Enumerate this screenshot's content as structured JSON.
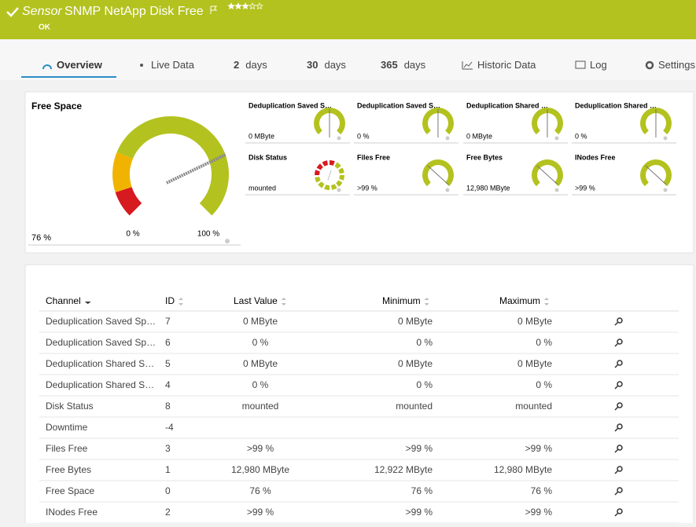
{
  "header": {
    "prefix": "Sensor",
    "title": "SNMP NetApp Disk Free",
    "status": "OK"
  },
  "tabs": [
    {
      "label": "Overview"
    },
    {
      "label": "Live Data"
    },
    {
      "count": "2",
      "label": "days"
    },
    {
      "count": "30",
      "label": "days"
    },
    {
      "count": "365",
      "label": "days"
    },
    {
      "label": "Historic Data"
    },
    {
      "label": "Log"
    },
    {
      "label": "Settings"
    }
  ],
  "gauge": {
    "title": "Free Space",
    "value": "76 %",
    "min_label": "0 %",
    "max_label": "100 %"
  },
  "mini_gauges": [
    {
      "title": "Deduplication Saved S…",
      "value": "0 MByte"
    },
    {
      "title": "Deduplication Saved S…",
      "value": "0 %"
    },
    {
      "title": "Deduplication Shared …",
      "value": "0 MByte"
    },
    {
      "title": "Deduplication Shared …",
      "value": "0 %"
    },
    {
      "title": "Disk Status",
      "value": "mounted"
    },
    {
      "title": "Files Free",
      "value": ">99 %"
    },
    {
      "title": "Free Bytes",
      "value": "12,980 MByte"
    },
    {
      "title": "INodes Free",
      "value": ">99 %"
    }
  ],
  "table": {
    "columns": [
      "Channel",
      "ID",
      "Last Value",
      "Minimum",
      "Maximum"
    ],
    "rows": [
      [
        "Deduplication Saved Sp…",
        7,
        "0 MByte",
        "0 MByte",
        "0 MByte"
      ],
      [
        "Deduplication Saved Sp…",
        6,
        "0 %",
        "0 %",
        "0 %"
      ],
      [
        "Deduplication Shared S…",
        5,
        "0 MByte",
        "0 MByte",
        "0 MByte"
      ],
      [
        "Deduplication Shared S…",
        4,
        "0 %",
        "0 %",
        "0 %"
      ],
      [
        "Disk Status",
        8,
        "mounted",
        "mounted",
        "mounted"
      ],
      [
        "Downtime",
        -4
      ],
      [
        "Files Free",
        3,
        ">99 %",
        ">99 %",
        ">99 %"
      ],
      [
        "Free Bytes",
        1,
        "12,980 MByte",
        "12,922 MByte",
        "12,980 MByte"
      ],
      [
        "Free Space",
        0,
        "76 %",
        "76 %",
        "76 %"
      ],
      [
        "INodes Free",
        2,
        ">99 %",
        ">99 %",
        ">99 %"
      ]
    ]
  }
}
